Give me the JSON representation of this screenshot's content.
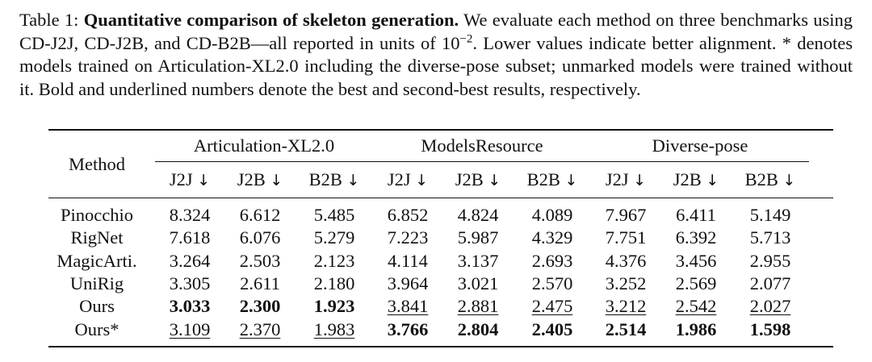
{
  "caption": {
    "label": "Table 1:",
    "title": "Quantitative comparison of skeleton generation.",
    "body_1": "We evaluate each method on three benchmarks using CD-J2J, CD-J2B, and CD-B2B—all reported in units of 10",
    "exponent": "−2",
    "body_2": ". Lower values indicate better alignment. * denotes models trained on Articulation-XL2.0 including the diverse-pose subset; unmarked models were trained without it. Bold and underlined numbers denote the best and second-best results, respectively."
  },
  "table": {
    "method_header": "Method",
    "groups": [
      "Articulation-XL2.0",
      "ModelsResource",
      "Diverse-pose"
    ],
    "metrics": [
      "J2J",
      "J2B",
      "B2B"
    ],
    "arrow": "↓",
    "rows": [
      {
        "method": "Pinocchio",
        "values": [
          "8.324",
          "6.612",
          "5.485",
          "6.852",
          "4.824",
          "4.089",
          "7.967",
          "6.411",
          "5.149"
        ],
        "styles": [
          "",
          "",
          "",
          "",
          "",
          "",
          "",
          "",
          ""
        ]
      },
      {
        "method": "RigNet",
        "values": [
          "7.618",
          "6.076",
          "5.279",
          "7.223",
          "5.987",
          "4.329",
          "7.751",
          "6.392",
          "5.713"
        ],
        "styles": [
          "",
          "",
          "",
          "",
          "",
          "",
          "",
          "",
          ""
        ]
      },
      {
        "method": "MagicArti.",
        "values": [
          "3.264",
          "2.503",
          "2.123",
          "4.114",
          "3.137",
          "2.693",
          "4.376",
          "3.456",
          "2.955"
        ],
        "styles": [
          "",
          "",
          "",
          "",
          "",
          "",
          "",
          "",
          ""
        ]
      },
      {
        "method": "UniRig",
        "values": [
          "3.305",
          "2.611",
          "2.180",
          "3.964",
          "3.021",
          "2.570",
          "3.252",
          "2.569",
          "2.077"
        ],
        "styles": [
          "",
          "",
          "",
          "",
          "",
          "",
          "",
          "",
          ""
        ]
      },
      {
        "method": "Ours",
        "values": [
          "3.033",
          "2.300",
          "1.923",
          "3.841",
          "2.881",
          "2.475",
          "3.212",
          "2.542",
          "2.027"
        ],
        "styles": [
          "best",
          "best",
          "best",
          "second",
          "second",
          "second",
          "second",
          "second",
          "second"
        ]
      },
      {
        "method": "Ours*",
        "values": [
          "3.109",
          "2.370",
          "1.983",
          "3.766",
          "2.804",
          "2.405",
          "2.514",
          "1.986",
          "1.598"
        ],
        "styles": [
          "second",
          "second",
          "second",
          "best",
          "best",
          "best",
          "best",
          "best",
          "best"
        ]
      }
    ]
  }
}
